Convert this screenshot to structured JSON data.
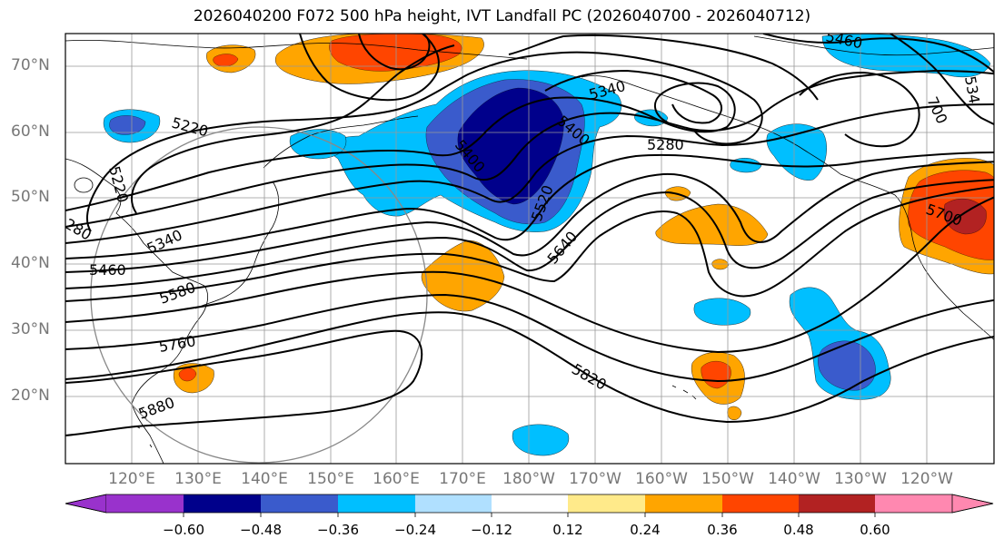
{
  "title": "2026040200 F072 500 hPa height, IVT Landfall PC (2026040700 - 2026040712)",
  "lat_labels": [
    "70°N",
    "60°N",
    "50°N",
    "40°N",
    "30°N",
    "20°N"
  ],
  "lon_labels": [
    "120°E",
    "130°E",
    "140°E",
    "150°E",
    "160°E",
    "170°E",
    "180°W",
    "170°W",
    "160°W",
    "150°W",
    "140°W",
    "130°W",
    "120°W"
  ],
  "contour_labels": [
    "5220",
    "5220",
    "280",
    "5340",
    "5460",
    "5580",
    "5760",
    "5880",
    "5400",
    "5520",
    "5640",
    "5340",
    "5400",
    "5280",
    "5460",
    "5700",
    "5820",
    "700",
    "534"
  ],
  "colorbar": {
    "ticks": [
      "−0.60",
      "−0.48",
      "−0.36",
      "−0.24",
      "−0.12",
      "0.12",
      "0.24",
      "0.36",
      "0.48",
      "0.60"
    ],
    "colors": [
      "#9932cc",
      "#00008b",
      "#3a5bcc",
      "#00bfff",
      "#b0e0ff",
      "#ffffff",
      "#ffea8a",
      "#ffa500",
      "#ff4500",
      "#b22222",
      "#ff88b0"
    ]
  },
  "colors": {
    "positive_1": "#ffa500",
    "positive_2": "#ff4500",
    "positive_3": "#b22222",
    "negative_1": "#00bfff",
    "negative_2": "#3a5bcc",
    "negative_3": "#00008b",
    "contour": "#000000",
    "grid": "#999999"
  }
}
